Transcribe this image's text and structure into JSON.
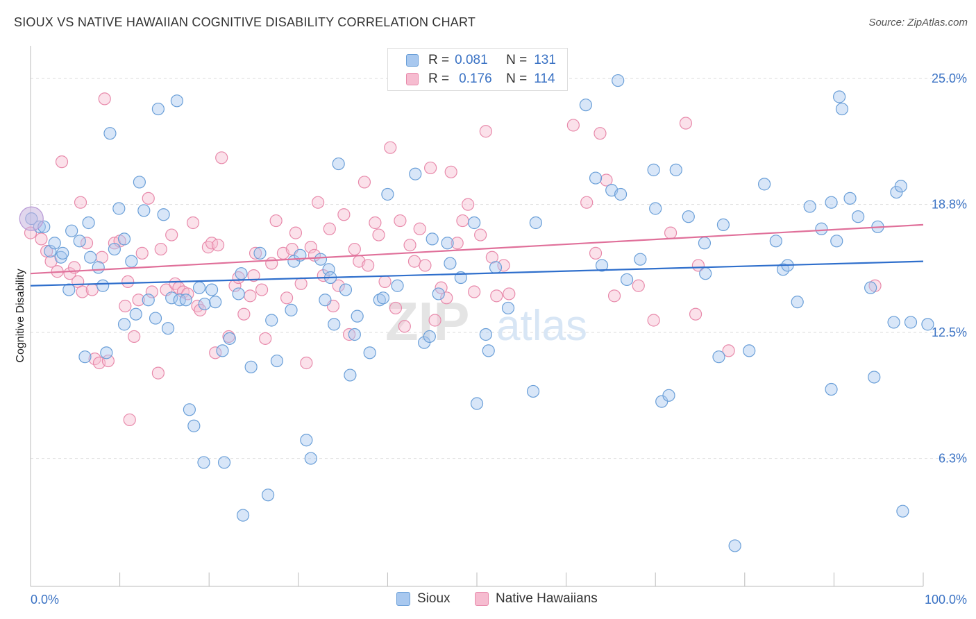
{
  "title": "SIOUX VS NATIVE HAWAIIAN COGNITIVE DISABILITY CORRELATION CHART",
  "source": "Source: ZipAtlas.com",
  "watermark": {
    "zip": "ZIP",
    "atlas": "atlas"
  },
  "colors": {
    "sioux_fill": "#a8c8ef",
    "sioux_stroke": "#6a9fd8",
    "sioux_line": "#2f6fcc",
    "hawaiian_fill": "#f6bcd0",
    "hawaiian_stroke": "#e88aab",
    "hawaiian_line": "#e0709a",
    "axis_label": "#3a72c4",
    "grid": "#dddddd"
  },
  "legend_top": {
    "rows": [
      {
        "r_label": "R =",
        "r_value": "0.081",
        "n_label": "N =",
        "n_value": "131"
      },
      {
        "r_label": "R =",
        "r_value": "0.176",
        "n_label": "N =",
        "n_value": "114"
      }
    ]
  },
  "legend_bottom": {
    "sioux": "Sioux",
    "hawaiians": "Native Hawaiians"
  },
  "chart_data": {
    "type": "scatter",
    "xlabel": "",
    "ylabel": "Cognitive Disability",
    "x_tick_labels": [
      "0.0%",
      "100.0%"
    ],
    "y_tick_labels": [
      "25.0%",
      "18.8%",
      "12.5%",
      "6.3%"
    ],
    "y_ticks": [
      25.0,
      18.8,
      12.5,
      6.3
    ],
    "xlim": [
      0,
      100
    ],
    "ylim": [
      0,
      26.2
    ],
    "grid": true,
    "series": [
      {
        "name": "Sioux",
        "trend": {
          "x": [
            0,
            100
          ],
          "y": [
            14.8,
            16.0
          ]
        },
        "points": [
          [
            0.1,
            18.1
          ],
          [
            1.0,
            17.7
          ],
          [
            1.5,
            17.7
          ],
          [
            2.2,
            16.5
          ],
          [
            2.7,
            16.9
          ],
          [
            3.4,
            16.2
          ],
          [
            3.6,
            16.4
          ],
          [
            4.3,
            14.6
          ],
          [
            4.6,
            17.5
          ],
          [
            5.5,
            17.0
          ],
          [
            6.1,
            11.3
          ],
          [
            6.5,
            17.9
          ],
          [
            6.7,
            16.2
          ],
          [
            7.6,
            15.7
          ],
          [
            8.1,
            14.8
          ],
          [
            8.5,
            11.5
          ],
          [
            8.9,
            22.3
          ],
          [
            9.4,
            16.6
          ],
          [
            9.9,
            18.6
          ],
          [
            10.5,
            12.9
          ],
          [
            10.5,
            17.1
          ],
          [
            11.3,
            16.0
          ],
          [
            11.8,
            13.4
          ],
          [
            12.2,
            19.9
          ],
          [
            12.7,
            18.5
          ],
          [
            13.2,
            14.1
          ],
          [
            14.0,
            13.2
          ],
          [
            14.3,
            23.5
          ],
          [
            14.9,
            18.3
          ],
          [
            15.4,
            12.7
          ],
          [
            15.8,
            14.2
          ],
          [
            16.4,
            23.9
          ],
          [
            16.7,
            14.1
          ],
          [
            17.4,
            14.1
          ],
          [
            17.8,
            8.7
          ],
          [
            18.3,
            7.9
          ],
          [
            18.9,
            14.7
          ],
          [
            19.4,
            6.1
          ],
          [
            19.5,
            13.9
          ],
          [
            20.3,
            14.6
          ],
          [
            20.7,
            14.0
          ],
          [
            21.5,
            11.6
          ],
          [
            21.7,
            6.1
          ],
          [
            22.3,
            12.2
          ],
          [
            23.3,
            14.4
          ],
          [
            23.6,
            15.4
          ],
          [
            23.8,
            3.5
          ],
          [
            24.7,
            10.8
          ],
          [
            25.7,
            16.4
          ],
          [
            26.6,
            4.5
          ],
          [
            27.0,
            13.1
          ],
          [
            27.6,
            11.1
          ],
          [
            29.2,
            13.6
          ],
          [
            29.5,
            16.0
          ],
          [
            30.2,
            16.3
          ],
          [
            30.9,
            7.2
          ],
          [
            31.4,
            6.3
          ],
          [
            32.5,
            16.1
          ],
          [
            33.0,
            14.1
          ],
          [
            33.4,
            15.6
          ],
          [
            33.6,
            15.2
          ],
          [
            34.0,
            12.9
          ],
          [
            34.5,
            20.8
          ],
          [
            35.3,
            14.6
          ],
          [
            35.8,
            10.4
          ],
          [
            36.3,
            12.4
          ],
          [
            36.6,
            13.3
          ],
          [
            38.0,
            11.5
          ],
          [
            39.1,
            14.1
          ],
          [
            39.5,
            14.2
          ],
          [
            40.0,
            19.3
          ],
          [
            41.1,
            14.8
          ],
          [
            43.1,
            20.3
          ],
          [
            44.1,
            12.0
          ],
          [
            44.7,
            12.3
          ],
          [
            45.0,
            17.1
          ],
          [
            45.7,
            14.4
          ],
          [
            46.7,
            16.9
          ],
          [
            47.0,
            15.9
          ],
          [
            48.2,
            15.2
          ],
          [
            49.7,
            17.9
          ],
          [
            50.0,
            9.0
          ],
          [
            51.0,
            12.4
          ],
          [
            51.3,
            11.6
          ],
          [
            52.1,
            15.7
          ],
          [
            53.5,
            13.7
          ],
          [
            56.3,
            9.6
          ],
          [
            56.6,
            17.9
          ],
          [
            62.2,
            23.7
          ],
          [
            63.3,
            20.1
          ],
          [
            64.0,
            15.8
          ],
          [
            65.1,
            19.5
          ],
          [
            65.8,
            24.9
          ],
          [
            66.1,
            19.3
          ],
          [
            66.8,
            15.1
          ],
          [
            68.3,
            16.1
          ],
          [
            69.8,
            20.5
          ],
          [
            70.0,
            18.6
          ],
          [
            70.7,
            9.1
          ],
          [
            71.5,
            9.4
          ],
          [
            72.3,
            20.5
          ],
          [
            73.7,
            18.2
          ],
          [
            75.5,
            16.9
          ],
          [
            75.6,
            15.4
          ],
          [
            77.1,
            11.3
          ],
          [
            77.6,
            17.8
          ],
          [
            80.5,
            11.6
          ],
          [
            82.2,
            19.8
          ],
          [
            83.5,
            17.0
          ],
          [
            84.3,
            15.6
          ],
          [
            84.8,
            15.8
          ],
          [
            85.9,
            14.0
          ],
          [
            87.3,
            18.7
          ],
          [
            88.6,
            17.6
          ],
          [
            89.7,
            9.7
          ],
          [
            89.7,
            18.9
          ],
          [
            90.3,
            17.0
          ],
          [
            90.6,
            24.1
          ],
          [
            90.9,
            23.5
          ],
          [
            91.8,
            19.1
          ],
          [
            92.7,
            18.2
          ],
          [
            94.1,
            14.7
          ],
          [
            94.5,
            10.3
          ],
          [
            94.9,
            17.7
          ],
          [
            96.7,
            13.0
          ],
          [
            97.0,
            19.4
          ],
          [
            97.5,
            19.7
          ],
          [
            97.7,
            3.7
          ],
          [
            98.6,
            13.0
          ],
          [
            100.5,
            12.9
          ],
          [
            78.9,
            2.0
          ]
        ]
      },
      {
        "name": "Native Hawaiians",
        "trend": {
          "x": [
            0,
            100
          ],
          "y": [
            15.4,
            17.8
          ]
        },
        "points": [
          [
            0.0,
            17.4
          ],
          [
            1.2,
            17.1
          ],
          [
            1.8,
            16.5
          ],
          [
            2.3,
            16.0
          ],
          [
            3.0,
            15.5
          ],
          [
            3.5,
            20.9
          ],
          [
            4.4,
            15.4
          ],
          [
            4.9,
            15.7
          ],
          [
            5.3,
            15.0
          ],
          [
            5.6,
            18.9
          ],
          [
            5.8,
            14.5
          ],
          [
            6.3,
            16.9
          ],
          [
            6.9,
            14.6
          ],
          [
            7.2,
            11.2
          ],
          [
            7.7,
            11.0
          ],
          [
            8.0,
            16.2
          ],
          [
            8.3,
            24.0
          ],
          [
            8.7,
            11.1
          ],
          [
            9.4,
            16.9
          ],
          [
            10.0,
            17.0
          ],
          [
            10.6,
            13.8
          ],
          [
            10.9,
            15.0
          ],
          [
            11.1,
            8.2
          ],
          [
            11.6,
            12.3
          ],
          [
            12.1,
            14.1
          ],
          [
            12.5,
            16.4
          ],
          [
            13.2,
            19.1
          ],
          [
            13.6,
            14.5
          ],
          [
            14.3,
            10.5
          ],
          [
            14.6,
            16.6
          ],
          [
            15.2,
            14.6
          ],
          [
            15.8,
            17.3
          ],
          [
            16.2,
            14.9
          ],
          [
            16.6,
            14.7
          ],
          [
            17.1,
            14.5
          ],
          [
            17.6,
            14.4
          ],
          [
            18.2,
            17.9
          ],
          [
            18.7,
            13.8
          ],
          [
            19.0,
            13.6
          ],
          [
            19.9,
            16.7
          ],
          [
            20.3,
            16.9
          ],
          [
            20.7,
            11.5
          ],
          [
            21.0,
            16.8
          ],
          [
            21.4,
            21.1
          ],
          [
            22.2,
            12.3
          ],
          [
            22.9,
            14.8
          ],
          [
            23.3,
            15.2
          ],
          [
            23.9,
            13.4
          ],
          [
            24.6,
            14.3
          ],
          [
            25.0,
            15.3
          ],
          [
            25.2,
            16.4
          ],
          [
            25.9,
            14.6
          ],
          [
            26.3,
            12.2
          ],
          [
            27.0,
            15.9
          ],
          [
            27.5,
            18.0
          ],
          [
            28.3,
            16.4
          ],
          [
            28.7,
            14.2
          ],
          [
            29.3,
            16.6
          ],
          [
            29.7,
            17.4
          ],
          [
            30.3,
            14.9
          ],
          [
            30.9,
            11.0
          ],
          [
            31.4,
            16.7
          ],
          [
            31.8,
            16.3
          ],
          [
            32.2,
            18.9
          ],
          [
            32.8,
            15.3
          ],
          [
            33.5,
            17.6
          ],
          [
            33.9,
            13.8
          ],
          [
            34.5,
            14.8
          ],
          [
            35.1,
            18.3
          ],
          [
            35.7,
            12.4
          ],
          [
            36.3,
            16.6
          ],
          [
            36.8,
            16.0
          ],
          [
            37.4,
            19.9
          ],
          [
            37.8,
            15.8
          ],
          [
            38.6,
            17.9
          ],
          [
            39.0,
            17.3
          ],
          [
            39.7,
            15.0
          ],
          [
            40.3,
            21.6
          ],
          [
            40.9,
            13.7
          ],
          [
            41.4,
            18.0
          ],
          [
            41.9,
            12.8
          ],
          [
            42.5,
            16.8
          ],
          [
            43.0,
            16.0
          ],
          [
            43.6,
            17.6
          ],
          [
            44.2,
            15.8
          ],
          [
            44.8,
            20.6
          ],
          [
            45.3,
            13.1
          ],
          [
            46.0,
            14.7
          ],
          [
            46.6,
            14.2
          ],
          [
            47.1,
            20.4
          ],
          [
            47.8,
            16.9
          ],
          [
            48.4,
            18.0
          ],
          [
            49.0,
            18.8
          ],
          [
            49.7,
            14.5
          ],
          [
            50.4,
            17.3
          ],
          [
            51.0,
            22.4
          ],
          [
            51.7,
            16.2
          ],
          [
            52.2,
            14.3
          ],
          [
            53.0,
            15.8
          ],
          [
            53.6,
            14.4
          ],
          [
            60.8,
            22.7
          ],
          [
            62.3,
            18.9
          ],
          [
            63.3,
            16.4
          ],
          [
            63.8,
            22.3
          ],
          [
            64.5,
            20.0
          ],
          [
            65.4,
            14.3
          ],
          [
            68.1,
            14.8
          ],
          [
            69.8,
            13.1
          ],
          [
            71.7,
            17.4
          ],
          [
            73.4,
            22.8
          ],
          [
            74.5,
            13.4
          ],
          [
            74.8,
            15.8
          ],
          [
            78.2,
            11.6
          ],
          [
            94.6,
            14.8
          ]
        ]
      }
    ]
  }
}
